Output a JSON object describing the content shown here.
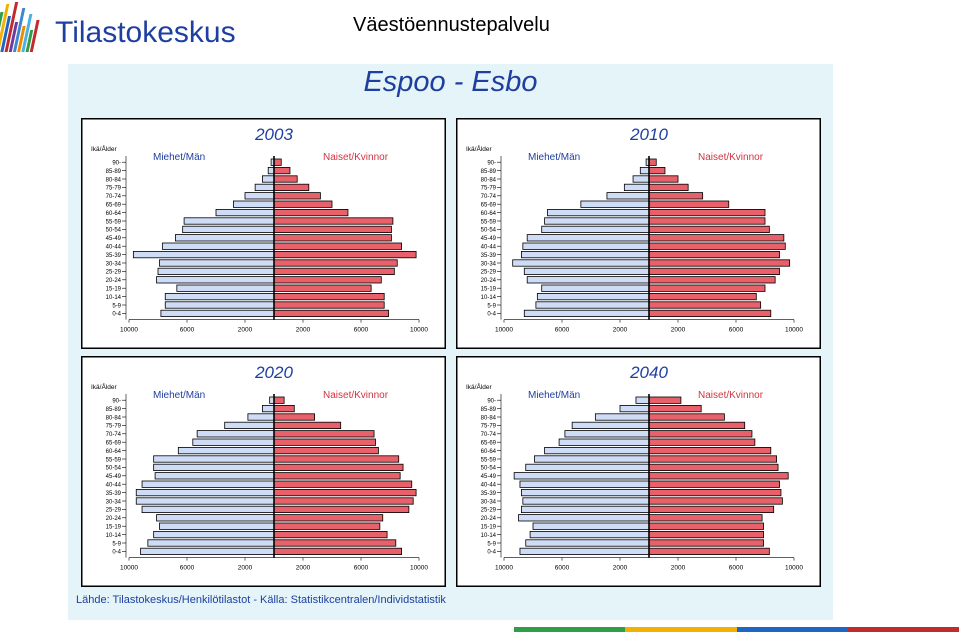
{
  "header": {
    "logo_text": "Tilastokeskus",
    "service_title": "Väestöennustepalvelu"
  },
  "panel": {
    "title": "Espoo  -  Esbo",
    "source": "Lähde: Tilastokeskus/Henkilötilastot  -  Källa: Statistikcentralen/Individstatistik"
  },
  "colors": {
    "male": "#cfdcf5",
    "female": "#e8606a",
    "title": "#1e3fa0",
    "female_label": "#d0333f",
    "panel_bg": "#e4f4f8",
    "footer": [
      "#2f9e47",
      "#f2b100",
      "#1f66c4",
      "#c12b2b"
    ]
  },
  "logo_bar_colors": [
    "#2f9e47",
    "#f2b100",
    "#1f66c4",
    "#c12b2b",
    "#6e3aa0",
    "#3d87d0",
    "#f08a00",
    "#4bb1e0",
    "#2f9e47",
    "#c12b2b"
  ],
  "chart_data": [
    {
      "type": "bar",
      "title": "2003",
      "age_label": "Ikä/Ålder",
      "male_label": "Miehet/Män",
      "female_label": "Naiset/Kvinnor",
      "categories": [
        "90-",
        "85-89",
        "80-84",
        "75-79",
        "70-74",
        "65-69",
        "60-64",
        "55-59",
        "50-54",
        "45-49",
        "40-44",
        "35-39",
        "30-34",
        "25-29",
        "20-24",
        "15-19",
        "10-14",
        "5-9",
        "0-4"
      ],
      "series": [
        {
          "name": "Miehet/Män",
          "values": [
            200,
            400,
            800,
            1300,
            2000,
            2800,
            4000,
            6200,
            6300,
            6800,
            7700,
            9700,
            7900,
            8000,
            8100,
            6700,
            7500,
            7500,
            7800
          ]
        },
        {
          "name": "Naiset/Kvinnor",
          "values": [
            500,
            1100,
            1600,
            2400,
            3200,
            4000,
            5100,
            8200,
            8100,
            8100,
            8800,
            9800,
            8500,
            8300,
            7400,
            6700,
            7600,
            7600,
            7900
          ]
        }
      ],
      "xticks": [
        "10000",
        "6000",
        "2000",
        "2000",
        "6000",
        "10000"
      ],
      "xlim": [
        -10000,
        10000
      ]
    },
    {
      "type": "bar",
      "title": "2010",
      "age_label": "Ikä/Ålder",
      "male_label": "Miehet/Män",
      "female_label": "Naiset/Kvinnor",
      "categories": [
        "90-",
        "85-89",
        "80-84",
        "75-79",
        "70-74",
        "65-69",
        "60-64",
        "55-59",
        "50-54",
        "45-49",
        "40-44",
        "35-39",
        "30-34",
        "25-29",
        "20-24",
        "15-19",
        "10-14",
        "5-9",
        "0-4"
      ],
      "series": [
        {
          "name": "Miehet/Män",
          "values": [
            200,
            600,
            1100,
            1700,
            2900,
            4700,
            7000,
            7200,
            7400,
            8400,
            8700,
            8800,
            9400,
            8600,
            8400,
            7400,
            7700,
            7800,
            8600
          ]
        },
        {
          "name": "Naiset/Kvinnor",
          "values": [
            500,
            1100,
            2000,
            2700,
            3700,
            5500,
            8000,
            8000,
            8300,
            9300,
            9400,
            9000,
            9700,
            9000,
            8700,
            8000,
            7400,
            7700,
            8400
          ]
        }
      ],
      "xticks": [
        "10000",
        "6000",
        "2000",
        "2000",
        "6000",
        "10000"
      ],
      "xlim": [
        -10000,
        10000
      ]
    },
    {
      "type": "bar",
      "title": "2020",
      "age_label": "Ikä/Ålder",
      "male_label": "Miehet/Män",
      "female_label": "Naiset/Kvinnor",
      "categories": [
        "90-",
        "85-89",
        "80-84",
        "75-79",
        "70-74",
        "65-69",
        "60-64",
        "55-59",
        "50-54",
        "45-49",
        "40-44",
        "35-39",
        "30-34",
        "25-29",
        "20-24",
        "15-19",
        "10-14",
        "5-9",
        "0-4"
      ],
      "series": [
        {
          "name": "Miehet/Män",
          "values": [
            300,
            800,
            1800,
            3400,
            5300,
            5600,
            6600,
            8300,
            8300,
            8200,
            9100,
            9500,
            9500,
            9100,
            8100,
            7900,
            8300,
            8700,
            9200
          ]
        },
        {
          "name": "Naiset/Kvinnor",
          "values": [
            700,
            1400,
            2800,
            4600,
            6900,
            7000,
            7200,
            8600,
            8900,
            8700,
            9500,
            9800,
            9600,
            9300,
            7500,
            7300,
            7800,
            8400,
            8800
          ]
        }
      ],
      "xticks": [
        "10000",
        "6000",
        "2000",
        "2000",
        "6000",
        "10000"
      ],
      "xlim": [
        -10000,
        10000
      ]
    },
    {
      "type": "bar",
      "title": "2040",
      "age_label": "Ikä/Ålder",
      "male_label": "Miehet/Män",
      "female_label": "Naiset/Kvinnor",
      "categories": [
        "90-",
        "85-89",
        "80-84",
        "75-79",
        "70-74",
        "65-69",
        "60-64",
        "55-59",
        "50-54",
        "45-49",
        "40-44",
        "35-39",
        "30-34",
        "25-29",
        "20-24",
        "15-19",
        "10-14",
        "5-9",
        "0-4"
      ],
      "series": [
        {
          "name": "Miehet/Män",
          "values": [
            900,
            2000,
            3700,
            5300,
            5800,
            6200,
            7200,
            7900,
            8500,
            9300,
            8900,
            8800,
            8700,
            8800,
            9000,
            8000,
            8200,
            8500,
            8900
          ]
        },
        {
          "name": "Naiset/Kvinnor",
          "values": [
            2200,
            3600,
            5200,
            6600,
            7100,
            7300,
            8400,
            8800,
            8900,
            9600,
            9000,
            9100,
            9200,
            8600,
            7800,
            7900,
            7900,
            7900,
            8300
          ]
        }
      ],
      "xticks": [
        "10000",
        "6000",
        "2000",
        "2000",
        "6000",
        "10000"
      ],
      "xlim": [
        -10000,
        10000
      ]
    }
  ]
}
